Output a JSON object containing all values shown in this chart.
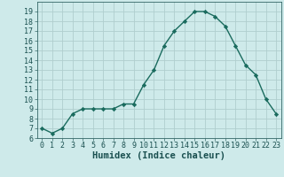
{
  "x": [
    0,
    1,
    2,
    3,
    4,
    5,
    6,
    7,
    8,
    9,
    10,
    11,
    12,
    13,
    14,
    15,
    16,
    17,
    18,
    19,
    20,
    21,
    22,
    23
  ],
  "y": [
    7.0,
    6.5,
    7.0,
    8.5,
    9.0,
    9.0,
    9.0,
    9.0,
    9.5,
    9.5,
    11.5,
    13.0,
    15.5,
    17.0,
    18.0,
    19.0,
    19.0,
    18.5,
    17.5,
    15.5,
    13.5,
    12.5,
    10.0,
    8.5
  ],
  "line_color": "#1a6b5e",
  "marker": "D",
  "marker_size": 2.2,
  "bg_color": "#ceeaea",
  "grid_color": "#b0cece",
  "xlabel": "Humidex (Indice chaleur)",
  "ylim": [
    6,
    20
  ],
  "xlim": [
    -0.5,
    23.5
  ],
  "yticks": [
    6,
    7,
    8,
    9,
    10,
    11,
    12,
    13,
    14,
    15,
    16,
    17,
    18,
    19
  ],
  "xticks": [
    0,
    1,
    2,
    3,
    4,
    5,
    6,
    7,
    8,
    9,
    10,
    11,
    12,
    13,
    14,
    15,
    16,
    17,
    18,
    19,
    20,
    21,
    22,
    23
  ],
  "tick_fontsize": 6.0,
  "xlabel_fontsize": 7.5,
  "linewidth": 1.0
}
